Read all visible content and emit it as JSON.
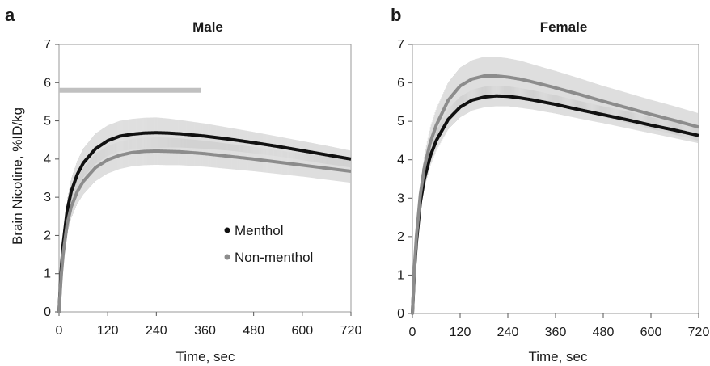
{
  "figure": {
    "panels": [
      {
        "letter": "a",
        "title": "Male",
        "xlabel": "Time, sec",
        "ylabel": "Brain Nicotine, %ID/kg",
        "legend": {
          "entries": [
            "Menthol",
            "Non-menthol"
          ]
        }
      },
      {
        "letter": "b",
        "title": "Female",
        "xlabel": "Time, sec",
        "ylabel": ""
      }
    ]
  },
  "chart_data": [
    {
      "type": "line",
      "title": "Male",
      "xlabel": "Time, sec",
      "ylabel": "Brain Nicotine, %ID/kg",
      "xlim": [
        0,
        720
      ],
      "ylim": [
        0,
        7
      ],
      "xticks": [
        0,
        120,
        240,
        360,
        480,
        600,
        720
      ],
      "yticks": [
        0,
        1,
        2,
        3,
        4,
        5,
        6,
        7
      ],
      "legend_position": "center-right",
      "grid": false,
      "significance_bar": {
        "y": 5.8,
        "x": [
          0,
          350
        ],
        "color": "#c0c0c0"
      },
      "series": [
        {
          "name": "Menthol",
          "color": "#111111",
          "x": [
            0,
            5,
            10,
            20,
            30,
            45,
            60,
            90,
            120,
            150,
            180,
            210,
            240,
            270,
            300,
            360,
            420,
            480,
            540,
            600,
            660,
            720
          ],
          "y": [
            0,
            1.05,
            1.75,
            2.65,
            3.15,
            3.6,
            3.9,
            4.27,
            4.48,
            4.6,
            4.65,
            4.68,
            4.69,
            4.68,
            4.66,
            4.6,
            4.52,
            4.43,
            4.33,
            4.22,
            4.11,
            4.0
          ],
          "error": [
            0,
            0.15,
            0.22,
            0.3,
            0.34,
            0.36,
            0.38,
            0.4,
            0.4,
            0.4,
            0.4,
            0.4,
            0.4,
            0.38,
            0.36,
            0.33,
            0.3,
            0.28,
            0.26,
            0.25,
            0.24,
            0.22
          ]
        },
        {
          "name": "Non-menthol",
          "color": "#8c8c8c",
          "x": [
            0,
            5,
            10,
            20,
            30,
            45,
            60,
            90,
            120,
            150,
            180,
            210,
            240,
            270,
            300,
            360,
            420,
            480,
            540,
            600,
            660,
            720
          ],
          "y": [
            0,
            0.9,
            1.5,
            2.3,
            2.75,
            3.15,
            3.42,
            3.78,
            3.98,
            4.1,
            4.17,
            4.2,
            4.21,
            4.2,
            4.19,
            4.14,
            4.07,
            4.0,
            3.92,
            3.84,
            3.76,
            3.68
          ],
          "error": [
            0,
            0.15,
            0.22,
            0.28,
            0.31,
            0.33,
            0.35,
            0.36,
            0.36,
            0.36,
            0.36,
            0.36,
            0.36,
            0.36,
            0.35,
            0.34,
            0.33,
            0.32,
            0.31,
            0.3,
            0.3,
            0.3
          ]
        }
      ]
    },
    {
      "type": "line",
      "title": "Female",
      "xlabel": "Time, sec",
      "ylabel": "",
      "xlim": [
        0,
        720
      ],
      "ylim": [
        0,
        7
      ],
      "xticks": [
        0,
        120,
        240,
        360,
        480,
        600,
        720
      ],
      "yticks": [
        0,
        1,
        2,
        3,
        4,
        5,
        6,
        7
      ],
      "grid": false,
      "series": [
        {
          "name": "Menthol",
          "color": "#111111",
          "x": [
            0,
            5,
            10,
            20,
            30,
            45,
            60,
            90,
            120,
            150,
            180,
            210,
            240,
            270,
            300,
            360,
            420,
            480,
            540,
            600,
            660,
            720
          ],
          "y": [
            0,
            1.1,
            1.85,
            2.9,
            3.5,
            4.1,
            4.5,
            5.05,
            5.37,
            5.55,
            5.63,
            5.66,
            5.65,
            5.61,
            5.56,
            5.44,
            5.3,
            5.17,
            5.04,
            4.9,
            4.77,
            4.63
          ],
          "error": [
            0,
            0.12,
            0.18,
            0.22,
            0.24,
            0.25,
            0.26,
            0.27,
            0.27,
            0.27,
            0.27,
            0.27,
            0.26,
            0.26,
            0.25,
            0.24,
            0.23,
            0.22,
            0.22,
            0.21,
            0.21,
            0.2
          ]
        },
        {
          "name": "Non-menthol",
          "color": "#8c8c8c",
          "x": [
            0,
            5,
            10,
            20,
            30,
            45,
            60,
            90,
            120,
            150,
            180,
            210,
            240,
            270,
            300,
            360,
            420,
            480,
            540,
            600,
            660,
            720
          ],
          "y": [
            0,
            1.2,
            2.0,
            3.1,
            3.8,
            4.45,
            4.9,
            5.55,
            5.92,
            6.1,
            6.18,
            6.18,
            6.15,
            6.1,
            6.03,
            5.87,
            5.7,
            5.52,
            5.35,
            5.18,
            5.02,
            4.85
          ],
          "error": [
            0,
            0.15,
            0.22,
            0.3,
            0.35,
            0.4,
            0.43,
            0.46,
            0.48,
            0.49,
            0.5,
            0.5,
            0.49,
            0.48,
            0.46,
            0.44,
            0.42,
            0.4,
            0.39,
            0.38,
            0.37,
            0.36
          ]
        }
      ]
    }
  ]
}
